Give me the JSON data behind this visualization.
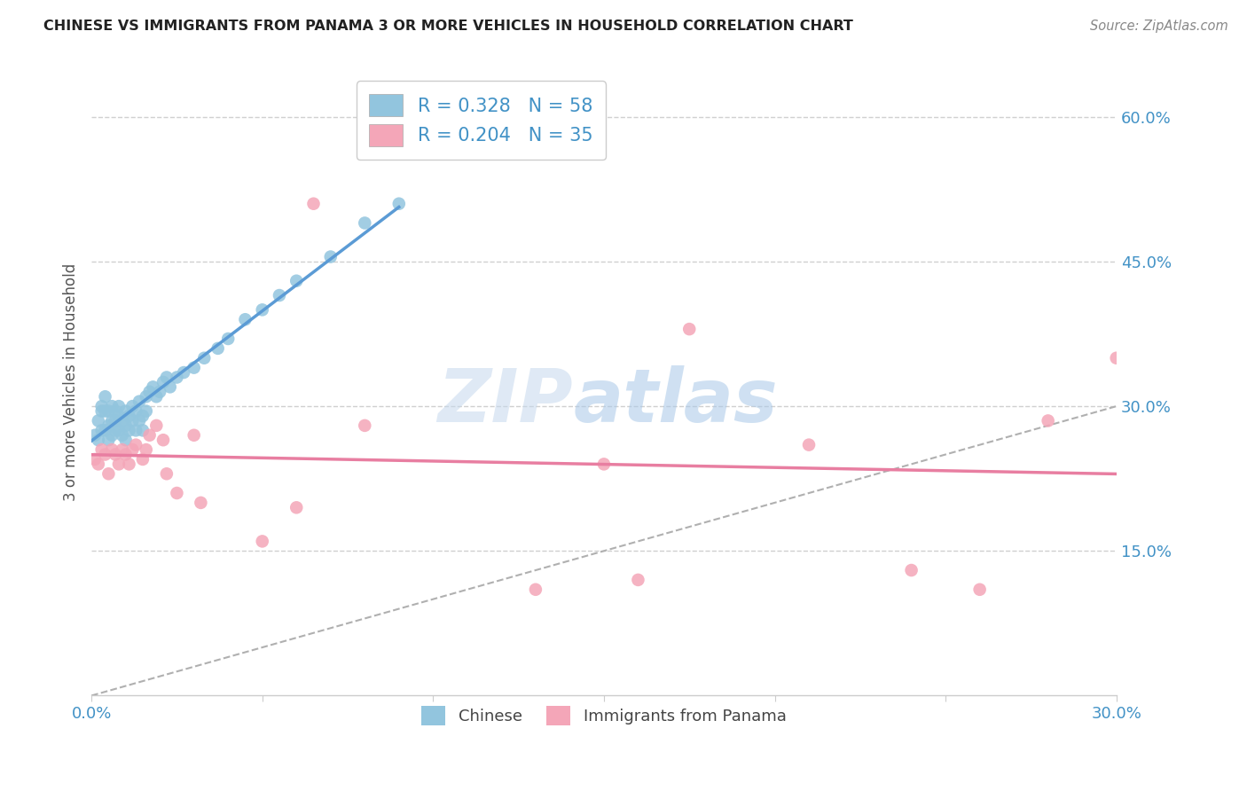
{
  "title": "CHINESE VS IMMIGRANTS FROM PANAMA 3 OR MORE VEHICLES IN HOUSEHOLD CORRELATION CHART",
  "source": "Source: ZipAtlas.com",
  "ylabel": "3 or more Vehicles in Household",
  "x_min": 0.0,
  "x_max": 0.3,
  "y_min": 0.0,
  "y_max": 0.65,
  "x_ticks": [
    0.0,
    0.05,
    0.1,
    0.15,
    0.2,
    0.25,
    0.3
  ],
  "y_ticks_right": [
    0.15,
    0.3,
    0.45,
    0.6
  ],
  "y_tick_labels_right": [
    "15.0%",
    "30.0%",
    "45.0%",
    "60.0%"
  ],
  "chinese_color": "#92c5de",
  "panama_color": "#f4a6b8",
  "regression_chinese_color": "#5b9bd5",
  "regression_panama_color": "#e87ea1",
  "diagonal_color": "#b0b0b0",
  "R_chinese": 0.328,
  "N_chinese": 58,
  "R_panama": 0.204,
  "N_panama": 35,
  "chinese_x": [
    0.001,
    0.002,
    0.002,
    0.003,
    0.003,
    0.003,
    0.004,
    0.004,
    0.004,
    0.005,
    0.005,
    0.005,
    0.006,
    0.006,
    0.006,
    0.007,
    0.007,
    0.007,
    0.008,
    0.008,
    0.008,
    0.009,
    0.009,
    0.01,
    0.01,
    0.01,
    0.011,
    0.011,
    0.012,
    0.012,
    0.013,
    0.013,
    0.014,
    0.014,
    0.015,
    0.015,
    0.016,
    0.016,
    0.017,
    0.018,
    0.019,
    0.02,
    0.021,
    0.022,
    0.023,
    0.025,
    0.027,
    0.03,
    0.033,
    0.037,
    0.04,
    0.045,
    0.05,
    0.055,
    0.06,
    0.07,
    0.08,
    0.09
  ],
  "chinese_y": [
    0.27,
    0.285,
    0.265,
    0.295,
    0.275,
    0.3,
    0.295,
    0.275,
    0.31,
    0.28,
    0.265,
    0.295,
    0.3,
    0.285,
    0.27,
    0.295,
    0.285,
    0.275,
    0.29,
    0.275,
    0.3,
    0.285,
    0.27,
    0.295,
    0.28,
    0.265,
    0.29,
    0.275,
    0.3,
    0.285,
    0.295,
    0.275,
    0.305,
    0.285,
    0.29,
    0.275,
    0.31,
    0.295,
    0.315,
    0.32,
    0.31,
    0.315,
    0.325,
    0.33,
    0.32,
    0.33,
    0.335,
    0.34,
    0.35,
    0.36,
    0.37,
    0.39,
    0.4,
    0.415,
    0.43,
    0.455,
    0.49,
    0.51
  ],
  "panama_x": [
    0.001,
    0.002,
    0.003,
    0.004,
    0.005,
    0.006,
    0.007,
    0.008,
    0.009,
    0.01,
    0.011,
    0.012,
    0.013,
    0.015,
    0.016,
    0.017,
    0.019,
    0.021,
    0.022,
    0.025,
    0.03,
    0.032,
    0.05,
    0.06,
    0.065,
    0.08,
    0.13,
    0.15,
    0.16,
    0.175,
    0.21,
    0.24,
    0.26,
    0.28,
    0.3
  ],
  "panama_y": [
    0.245,
    0.24,
    0.255,
    0.25,
    0.23,
    0.255,
    0.25,
    0.24,
    0.255,
    0.25,
    0.24,
    0.255,
    0.26,
    0.245,
    0.255,
    0.27,
    0.28,
    0.265,
    0.23,
    0.21,
    0.27,
    0.2,
    0.16,
    0.195,
    0.51,
    0.28,
    0.11,
    0.24,
    0.12,
    0.38,
    0.26,
    0.13,
    0.11,
    0.285,
    0.35
  ],
  "watermark_zip": "ZIP",
  "watermark_atlas": "atlas",
  "legend_labels": [
    "Chinese",
    "Immigrants from Panama"
  ],
  "title_color": "#222222",
  "axis_label_color": "#4292c6",
  "background_color": "#ffffff",
  "grid_color": "#d0d0d0"
}
